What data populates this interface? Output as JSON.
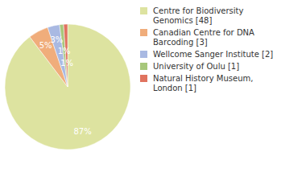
{
  "chart_data": {
    "type": "pie",
    "categories": [
      "Centre for Biodiversity Genomics [48]",
      "Canadian Centre for DNA Barcoding [3]",
      "Wellcome Sanger Institute [2]",
      "University of Oulu [1]",
      "Natural History Museum, London [1]"
    ],
    "values": [
      87,
      5,
      3,
      1,
      1
    ],
    "value_labels": [
      "87%",
      "5%",
      "3%",
      "1%",
      "1%"
    ],
    "colors": [
      "#dde3a0",
      "#f0ad7b",
      "#a9b9e2",
      "#a7c77b",
      "#e0735f"
    ],
    "data_labels": true,
    "legend": "upper right"
  }
}
